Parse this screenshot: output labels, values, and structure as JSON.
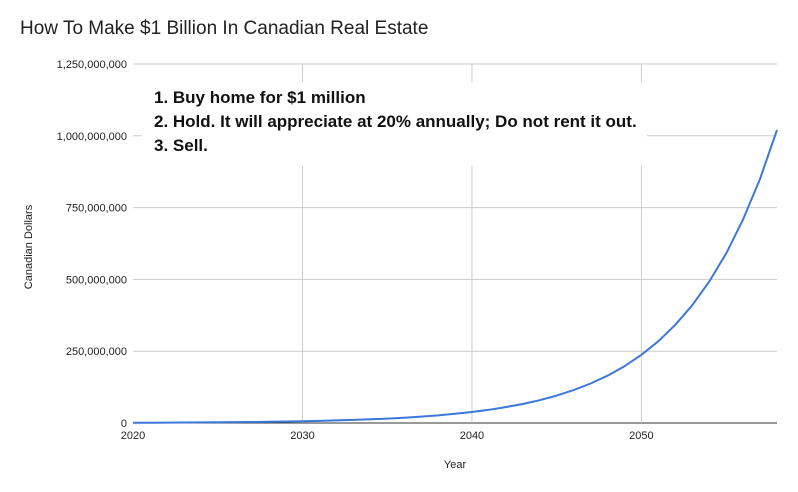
{
  "chart_data": {
    "type": "line",
    "title": "How To Make $1 Billion In Canadian Real Estate",
    "xlabel": "Year",
    "ylabel": "Canadian Dollars",
    "xlim": [
      2020,
      2058
    ],
    "ylim": [
      0,
      1250000000
    ],
    "x_ticks": [
      "2020",
      "2030",
      "2040",
      "2050"
    ],
    "y_ticks": [
      "0",
      "250,000,000",
      "500,000,000",
      "750,000,000",
      "1,000,000,000",
      "1,250,000,000"
    ],
    "grid": true,
    "annotations": [
      "1. Buy home for $1 million",
      "2. Hold. It will appreciate at 20% annually; Do not rent it out.",
      "3. Sell."
    ],
    "series": [
      {
        "color": "#3c78d8",
        "x": [
          2020,
          2021,
          2022,
          2023,
          2024,
          2025,
          2026,
          2027,
          2028,
          2029,
          2030,
          2031,
          2032,
          2033,
          2034,
          2035,
          2036,
          2037,
          2038,
          2039,
          2040,
          2041,
          2042,
          2043,
          2044,
          2045,
          2046,
          2047,
          2048,
          2049,
          2050,
          2051,
          2052,
          2053,
          2054,
          2055,
          2056,
          2057,
          2058
        ],
        "values": [
          1000000,
          1200000,
          1440000,
          1730000,
          2070000,
          2490000,
          2990000,
          3580000,
          4300000,
          5160000,
          6190000,
          7430000,
          8920000,
          10700000,
          12840000,
          15410000,
          18490000,
          22190000,
          26620000,
          31950000,
          38340000,
          46000000,
          55210000,
          66250000,
          79500000,
          95400000,
          114480000,
          137370000,
          164840000,
          197810000,
          237380000,
          284850000,
          341820000,
          410180000,
          492220000,
          590670000,
          708800000,
          850560000,
          1020670000
        ]
      }
    ]
  }
}
